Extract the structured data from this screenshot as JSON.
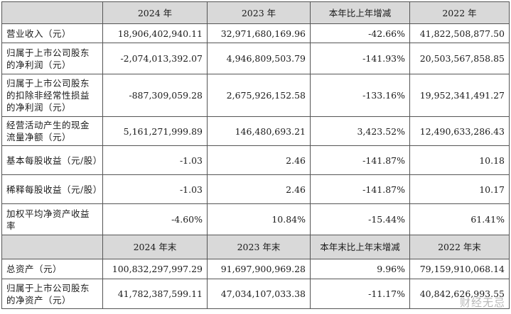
{
  "header1": [
    "",
    "2024 年",
    "2023 年",
    "本年比上年增减",
    "2022 年"
  ],
  "rows1": [
    {
      "label": "营业收入（元）",
      "v2024": "18,906,402,940.11",
      "v2023": "32,971,680,169.96",
      "change": "-42.66%",
      "v2022": "41,822,508,877.50"
    },
    {
      "label": "归属于上市公司股东的净利润（元）",
      "v2024": "-2,074,013,392.07",
      "v2023": "4,946,809,503.79",
      "change": "-141.93%",
      "v2022": "20,503,567,858.85"
    },
    {
      "label": "归属于上市公司股东的扣除非经常性损益的净利润（元）",
      "v2024": "-887,309,059.28",
      "v2023": "2,675,926,152.58",
      "change": "-133.16%",
      "v2022": "19,952,341,491.27"
    },
    {
      "label": "经营活动产生的现金流量净额（元）",
      "v2024": "5,161,271,999.89",
      "v2023": "146,480,693.21",
      "change": "3,423.52%",
      "v2022": "12,490,633,286.43"
    },
    {
      "label": "基本每股收益（元/股）",
      "v2024": "-1.03",
      "v2023": "2.46",
      "change": "-141.87%",
      "v2022": "10.18"
    },
    {
      "label": "稀释每股收益（元/股）",
      "v2024": "-1.03",
      "v2023": "2.46",
      "change": "-141.87%",
      "v2022": "10.17"
    },
    {
      "label": "加权平均净资产收益率",
      "v2024": "-4.60%",
      "v2023": "10.84%",
      "change": "-15.44%",
      "v2022": "61.41%"
    }
  ],
  "header2": [
    "",
    "2024 年末",
    "2023 年末",
    "本年末比上年末增减",
    "2022 年末"
  ],
  "rows2": [
    {
      "label": "总资产（元）",
      "v2024": "100,832,297,997.29",
      "v2023": "91,697,900,969.28",
      "change": "9.96%",
      "v2022": "79,159,910,068.14"
    },
    {
      "label": "归属于上市公司股东的净资产（元）",
      "v2024": "41,782,387,599.11",
      "v2023": "47,034,107,033.38",
      "change": "-11.17%",
      "v2022": "40,842,626,993.55"
    }
  ],
  "watermark": "财经无忌"
}
